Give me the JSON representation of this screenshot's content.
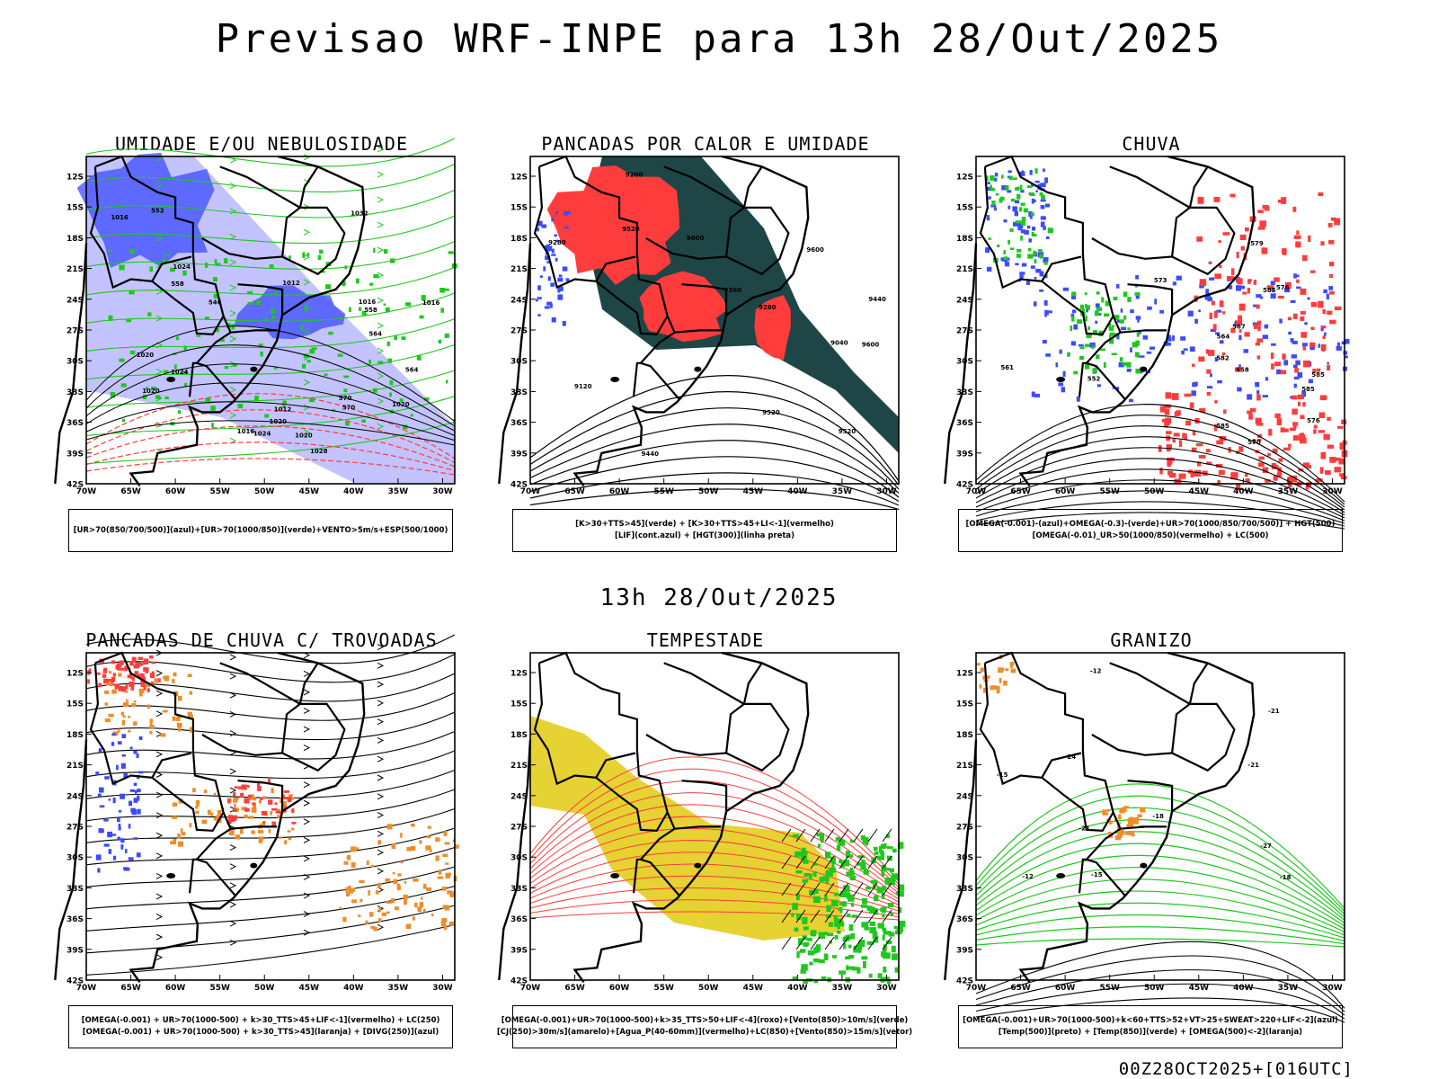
{
  "main_title": "Previsao WRF-INPE  para 13h 28/Out/2025",
  "mid_title": "13h 28/Out/2025",
  "footer": "00Z28OCT2025+[016UTC]",
  "colors": {
    "blue": "#3b4bff",
    "lightblue": "#b4b4ff",
    "green": "#1ec81e",
    "red": "#ff3c3c",
    "darkteal": "#1e4646",
    "orange": "#f08c28",
    "yellow": "#e6d232",
    "purple": "#a050c8"
  },
  "chart_data": [
    {
      "type": "heatmap",
      "title": "UMIDADE E/OU NEBULOSIDADE",
      "lat_labels": [
        "12S",
        "15S",
        "18S",
        "21S",
        "24S",
        "27S",
        "30S",
        "33S",
        "36S",
        "39S",
        "42S"
      ],
      "lon_labels": [
        "70W",
        "65W",
        "60W",
        "55W",
        "50W",
        "45W",
        "40W",
        "35W",
        "30W"
      ],
      "legend": [
        "[UR>70(850/700/500)](azul)+[UR>70(1000/850)](verde)+VENTO>5m/s+ESP(500/1000)"
      ],
      "contour_labels": [
        "1016",
        "1012",
        "1012",
        "1016",
        "1016",
        "1020",
        "1020",
        "1020",
        "1016",
        "1024",
        "1024",
        "1020",
        "1024",
        "1028",
        "1032",
        "1020",
        "570",
        "570",
        "564",
        "558",
        "552",
        "564",
        "558",
        "546"
      ]
    },
    {
      "type": "heatmap",
      "title": "PANCADAS POR CALOR E UMIDADE",
      "lat_labels": [
        "12S",
        "15S",
        "18S",
        "21S",
        "24S",
        "27S",
        "30S",
        "33S",
        "36S",
        "39S",
        "42S"
      ],
      "lon_labels": [
        "70W",
        "65W",
        "60W",
        "55W",
        "50W",
        "45W",
        "40W",
        "35W",
        "30W"
      ],
      "legend": [
        "[K>30+TTS>45](verde) + [K>30+TTS>45+LI<-1](vermelho)",
        "[LIF](cont.azul) + [HGT(300)](linha preta)"
      ],
      "contour_labels": [
        "9600",
        "9520",
        "9600",
        "9600",
        "9520",
        "9440",
        "9360",
        "9520",
        "9440",
        "9280",
        "9280",
        "9200",
        "9120",
        "9040"
      ]
    },
    {
      "type": "heatmap",
      "title": "CHUVA",
      "lat_labels": [
        "12S",
        "15S",
        "18S",
        "21S",
        "24S",
        "27S",
        "30S",
        "33S",
        "36S",
        "39S",
        "42S"
      ],
      "lon_labels": [
        "70W",
        "65W",
        "60W",
        "55W",
        "50W",
        "45W",
        "40W",
        "35W",
        "30W"
      ],
      "legend": [
        "[OMEGA(-0.001)-(azul)+OMEGA(-0.3)-(verde)+UR>70(1000/850/700/500)] + HGT(500)",
        "[OMEGA(-0.01)_UR>50(1000/850)(vermelho) + LC(500)"
      ],
      "contour_labels": [
        "582",
        "585",
        "585",
        "585",
        "585",
        "579",
        "576",
        "573",
        "576",
        "570",
        "567",
        "564",
        "561",
        "558",
        "552"
      ]
    },
    {
      "type": "heatmap",
      "title": "PANCADAS DE CHUVA C/ TROVOADAS",
      "lat_labels": [
        "12S",
        "15S",
        "18S",
        "21S",
        "24S",
        "27S",
        "30S",
        "33S",
        "36S",
        "39S",
        "42S"
      ],
      "lon_labels": [
        "70W",
        "65W",
        "60W",
        "55W",
        "50W",
        "45W",
        "40W",
        "35W",
        "30W"
      ],
      "legend": [
        "[OMEGA(-0.001) + UR>70(1000-500) + k>30_TTS>45+LIF<-1](vermelho) + LC(250)",
        "[OMEGA(-0.001) + UR>70(1000-500) + k>30_TTS>45](laranja) + [DIVG(250)](azul)"
      ],
      "contour_labels": []
    },
    {
      "type": "heatmap",
      "title": "TEMPESTADE",
      "lat_labels": [
        "12S",
        "15S",
        "18S",
        "21S",
        "24S",
        "27S",
        "30S",
        "33S",
        "36S",
        "39S",
        "42S"
      ],
      "lon_labels": [
        "70W",
        "65W",
        "60W",
        "55W",
        "50W",
        "45W",
        "40W",
        "35W",
        "30W"
      ],
      "legend": [
        "[OMEGA(-0.001)+UR>70(1000-500)+k>35_TTS>50+LIF<-4](roxo)+[Vento(850)>10m/s](verde)",
        "[CJ(250)>30m/s](amarelo)+[Agua_P(40-60mm)](vermelho)+LC(850)+[Vento(850)>15m/s](vetor)"
      ],
      "contour_labels": []
    },
    {
      "type": "heatmap",
      "title": "GRANIZO",
      "lat_labels": [
        "12S",
        "15S",
        "18S",
        "21S",
        "24S",
        "27S",
        "30S",
        "33S",
        "36S",
        "39S",
        "42S"
      ],
      "lon_labels": [
        "70W",
        "65W",
        "60W",
        "55W",
        "50W",
        "45W",
        "40W",
        "35W",
        "30W"
      ],
      "legend": [
        "[OMEGA(-0.001)+UR>70(1000-500)+k<60+TTS>52+VT>25+SWEAT>220+LIF<-2](azul)",
        "[Temp(500)](preto) + [Temp(850)](verde) + [OMEGA(500)<-2](laranja)"
      ],
      "contour_labels": [
        "-18",
        "-21",
        "-24",
        "-27",
        "-21",
        "-15",
        "-12",
        "-18",
        "-21",
        "-15",
        "-12"
      ]
    }
  ]
}
